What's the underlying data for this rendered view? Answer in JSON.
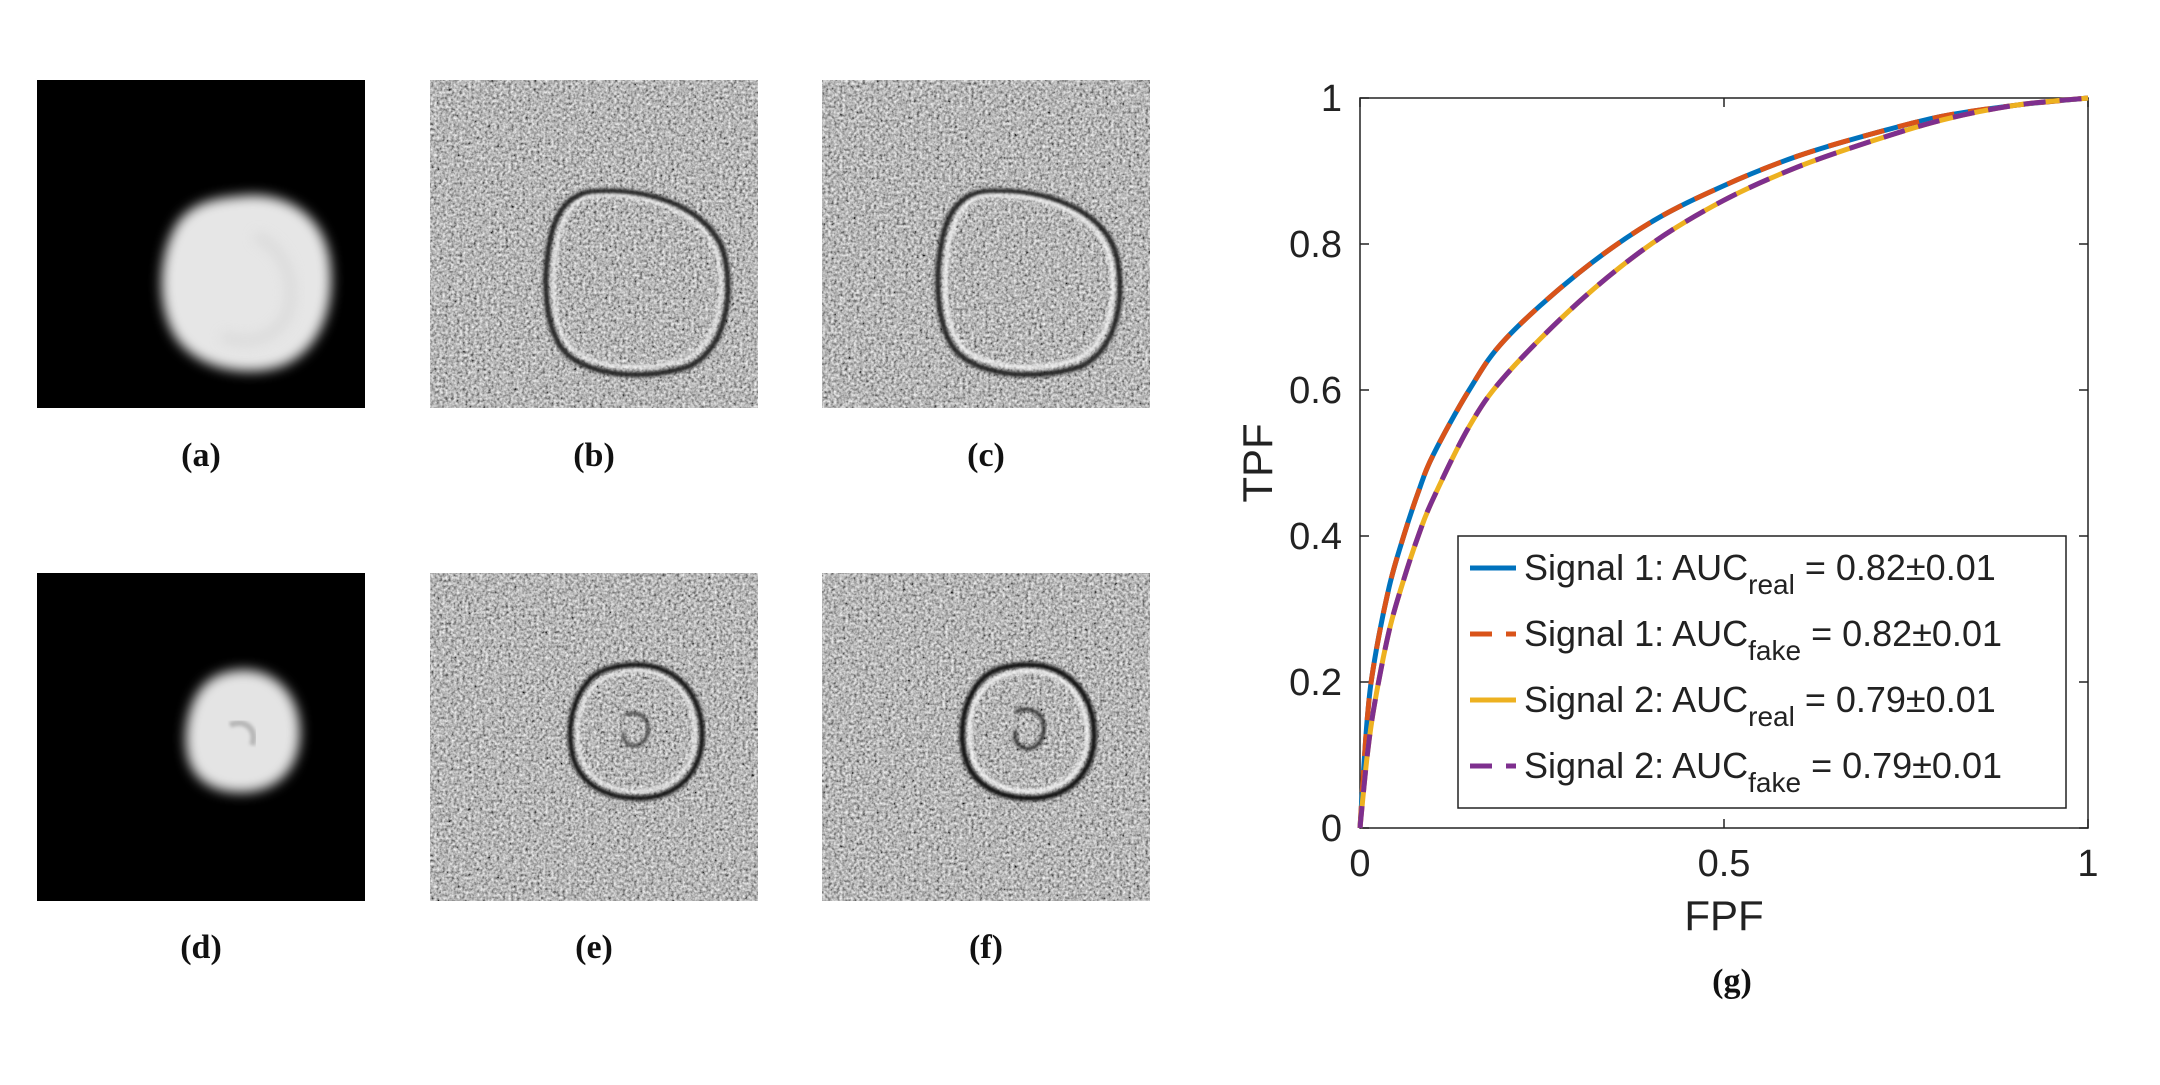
{
  "panels": [
    {
      "label": "(a)",
      "kind": "signal"
    },
    {
      "label": "(b)",
      "kind": "edge"
    },
    {
      "label": "(c)",
      "kind": "edge"
    },
    {
      "label": "(d)",
      "kind": "signal"
    },
    {
      "label": "(e)",
      "kind": "edge"
    },
    {
      "label": "(f)",
      "kind": "edge"
    }
  ],
  "chart_label": "(g)",
  "chart_data": {
    "type": "line",
    "title": "",
    "xlabel": "FPF",
    "ylabel": "TPF",
    "xlim": [
      0,
      1
    ],
    "ylim": [
      0,
      1
    ],
    "xticks": [
      "0",
      "0.5",
      "1"
    ],
    "yticks": [
      "0",
      "0.2",
      "0.4",
      "0.6",
      "0.8",
      "1"
    ],
    "grid": false,
    "legend_position": "bottom-right",
    "series": [
      {
        "name": "Signal 1: AUC",
        "name_sub": "real",
        "name_tail": " = 0.82±0.01",
        "color": "#0072BD",
        "dash": "solid",
        "x": [
          0,
          0.01,
          0.02,
          0.04,
          0.06,
          0.08,
          0.1,
          0.15,
          0.2,
          0.3,
          0.4,
          0.5,
          0.6,
          0.7,
          0.8,
          0.9,
          1.0
        ],
        "y": [
          0,
          0.15,
          0.23,
          0.33,
          0.4,
          0.46,
          0.51,
          0.6,
          0.67,
          0.76,
          0.83,
          0.88,
          0.92,
          0.95,
          0.975,
          0.99,
          1.0
        ]
      },
      {
        "name": "Signal 1: AUC",
        "name_sub": "fake",
        "name_tail": " = 0.82±0.01",
        "color": "#D95319",
        "dash": "dashed",
        "x": [
          0,
          0.01,
          0.02,
          0.04,
          0.06,
          0.08,
          0.1,
          0.15,
          0.2,
          0.3,
          0.4,
          0.5,
          0.6,
          0.7,
          0.8,
          0.9,
          1.0
        ],
        "y": [
          0,
          0.15,
          0.23,
          0.33,
          0.4,
          0.46,
          0.51,
          0.6,
          0.67,
          0.76,
          0.83,
          0.88,
          0.92,
          0.95,
          0.975,
          0.99,
          1.0
        ]
      },
      {
        "name": "Signal 2: AUC",
        "name_sub": "real",
        "name_tail": " = 0.79±0.01",
        "color": "#EDB120",
        "dash": "solid",
        "x": [
          0,
          0.01,
          0.02,
          0.04,
          0.06,
          0.08,
          0.1,
          0.15,
          0.2,
          0.3,
          0.4,
          0.5,
          0.6,
          0.7,
          0.8,
          0.9,
          1.0
        ],
        "y": [
          0,
          0.1,
          0.17,
          0.27,
          0.34,
          0.4,
          0.45,
          0.55,
          0.62,
          0.72,
          0.8,
          0.86,
          0.905,
          0.94,
          0.97,
          0.99,
          1.0
        ]
      },
      {
        "name": "Signal 2: AUC",
        "name_sub": "fake",
        "name_tail": " = 0.79±0.01",
        "color": "#7E2F8E",
        "dash": "dashed",
        "x": [
          0,
          0.01,
          0.02,
          0.04,
          0.06,
          0.08,
          0.1,
          0.15,
          0.2,
          0.3,
          0.4,
          0.5,
          0.6,
          0.7,
          0.8,
          0.9,
          1.0
        ],
        "y": [
          0,
          0.1,
          0.17,
          0.27,
          0.34,
          0.4,
          0.45,
          0.55,
          0.62,
          0.72,
          0.8,
          0.86,
          0.905,
          0.94,
          0.97,
          0.99,
          1.0
        ]
      }
    ]
  }
}
